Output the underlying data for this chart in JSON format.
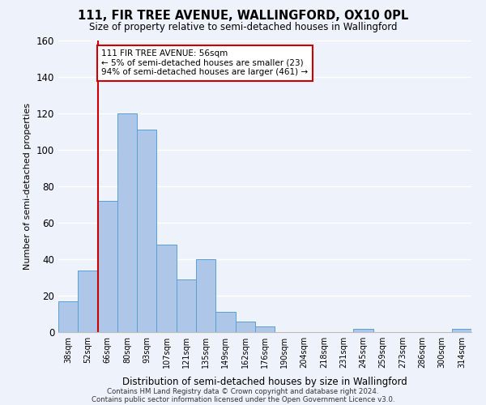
{
  "title": "111, FIR TREE AVENUE, WALLINGFORD, OX10 0PL",
  "subtitle": "Size of property relative to semi-detached houses in Wallingford",
  "xlabel": "Distribution of semi-detached houses by size in Wallingford",
  "ylabel": "Number of semi-detached properties",
  "categories": [
    "38sqm",
    "52sqm",
    "66sqm",
    "80sqm",
    "93sqm",
    "107sqm",
    "121sqm",
    "135sqm",
    "149sqm",
    "162sqm",
    "176sqm",
    "190sqm",
    "204sqm",
    "218sqm",
    "231sqm",
    "245sqm",
    "259sqm",
    "273sqm",
    "286sqm",
    "300sqm",
    "314sqm"
  ],
  "values": [
    17,
    34,
    72,
    120,
    111,
    48,
    29,
    40,
    11,
    6,
    3,
    0,
    0,
    0,
    0,
    2,
    0,
    0,
    0,
    0,
    2
  ],
  "bar_color": "#aec6e8",
  "bar_edgecolor": "#5a9fd4",
  "ylim": [
    0,
    160
  ],
  "yticks": [
    0,
    20,
    40,
    60,
    80,
    100,
    120,
    140,
    160
  ],
  "property_line_index": 1.5,
  "annotation_title": "111 FIR TREE AVENUE: 56sqm",
  "annotation_line1": "← 5% of semi-detached houses are smaller (23)",
  "annotation_line2": "94% of semi-detached houses are larger (461) →",
  "annotation_box_color": "#ffffff",
  "annotation_box_edgecolor": "#cc0000",
  "property_line_color": "#cc0000",
  "footer_line1": "Contains HM Land Registry data © Crown copyright and database right 2024.",
  "footer_line2": "Contains public sector information licensed under the Open Government Licence v3.0.",
  "background_color": "#eef2fb",
  "grid_color": "#ffffff"
}
